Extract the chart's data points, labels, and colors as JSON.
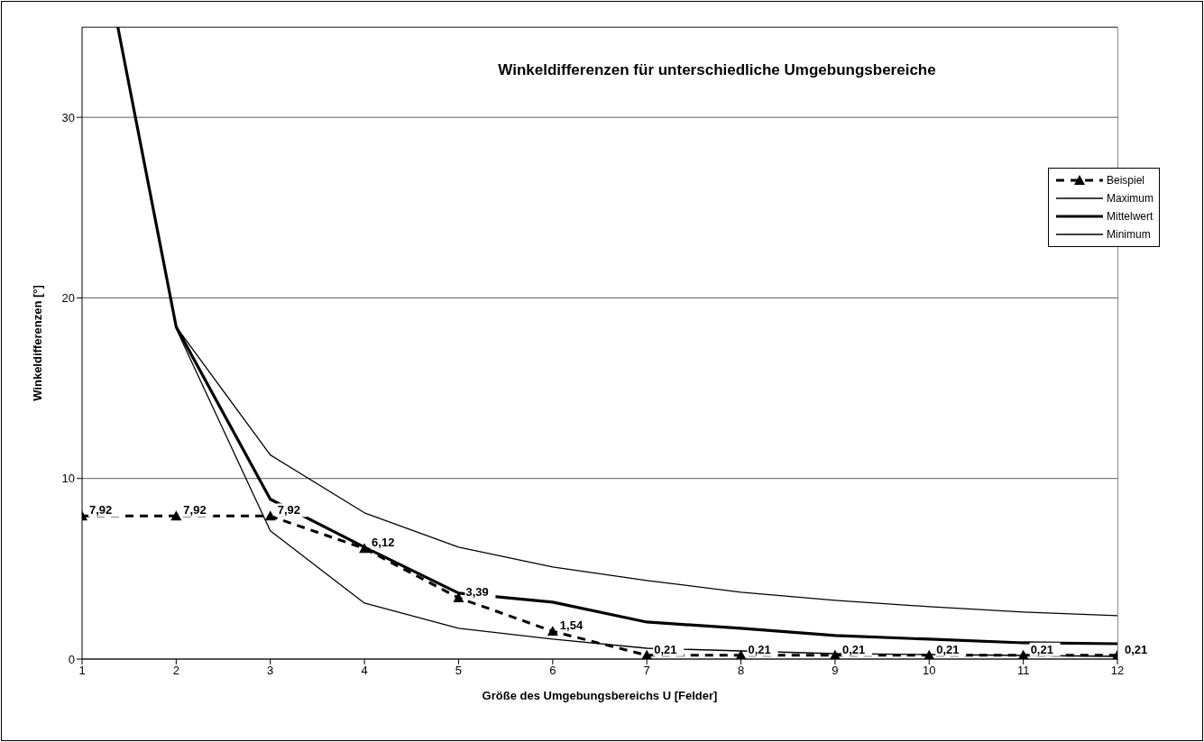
{
  "chart_data": {
    "type": "line",
    "title": "Winkeldifferenzen für unterschiedliche Umgebungsbereiche",
    "xlabel": "Größe des Umgebungsbereichs U [Felder]",
    "ylabel": "Winkeldifferenzen [°]",
    "xlim": [
      1,
      12
    ],
    "xticks": [
      1,
      2,
      3,
      4,
      5,
      6,
      7,
      8,
      9,
      10,
      11,
      12
    ],
    "ylim": [
      0,
      35
    ],
    "yticks": [
      0,
      10,
      20,
      30
    ],
    "grid": "y",
    "legend": "right",
    "series": [
      {
        "name": "Beispiel",
        "color": "#000000",
        "marker": "triangle",
        "line_style": "dashed",
        "x": [
          1,
          2,
          3,
          4,
          5,
          6,
          7,
          8,
          9,
          10,
          11,
          12
        ],
        "values": [
          7.92,
          7.92,
          7.92,
          6.12,
          3.39,
          1.54,
          0.21,
          0.21,
          0.21,
          0.21,
          0.21,
          0.21
        ],
        "value_labels": [
          "7,92",
          "7,92",
          "7,92",
          "6,12",
          "3,39",
          "1,54",
          "0,21",
          "0,21",
          "0,21",
          "0,21",
          "0,21",
          "0,21"
        ]
      },
      {
        "name": "Maximum",
        "color": "#000000",
        "marker": "none",
        "line_style": "solid",
        "x": [
          1.38,
          2,
          3,
          4,
          5,
          6,
          7,
          8,
          9,
          10,
          11,
          12
        ],
        "values": [
          35,
          18.4,
          11.3,
          8.1,
          6.2,
          5.1,
          4.35,
          3.7,
          3.25,
          2.9,
          2.6,
          2.4
        ]
      },
      {
        "name": "Mittelwert",
        "color": "#000000",
        "marker": "none",
        "line_style": "solid",
        "x": [
          1.38,
          2,
          3,
          4,
          5,
          6,
          7,
          8,
          9,
          10,
          11,
          12
        ],
        "values": [
          35,
          18.4,
          8.85,
          6.2,
          3.65,
          3.15,
          2.05,
          1.7,
          1.3,
          1.1,
          0.9,
          0.85
        ]
      },
      {
        "name": "Minimum",
        "color": "#000000",
        "marker": "none",
        "line_style": "solid",
        "x": [
          1.38,
          2,
          3,
          4,
          5,
          6,
          7,
          8,
          9,
          10,
          11,
          12
        ],
        "values": [
          35,
          18.3,
          7.1,
          3.1,
          1.7,
          1.1,
          0.6,
          0.45,
          0.3,
          0.25,
          0.2,
          0.15
        ]
      }
    ]
  }
}
